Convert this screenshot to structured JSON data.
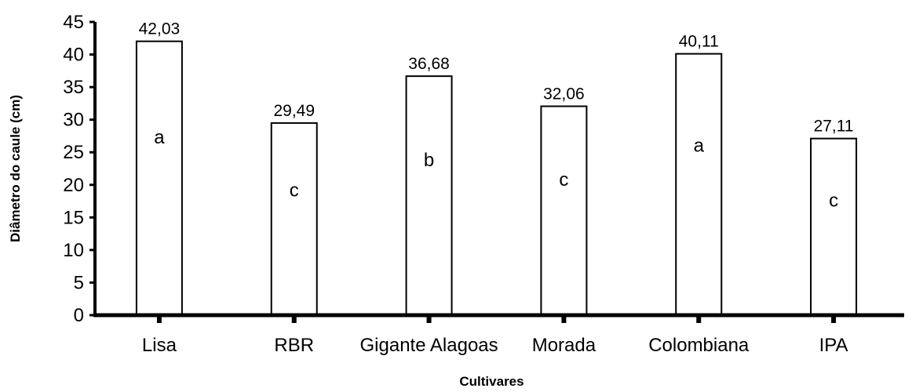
{
  "chart_data": {
    "type": "bar",
    "title": "",
    "xlabel": "Cultivares",
    "ylabel": "Diâmetro do caule (cm)",
    "ylim": [
      0,
      45
    ],
    "yticks": [
      0,
      5,
      10,
      15,
      20,
      25,
      30,
      35,
      40,
      45
    ],
    "categories": [
      "Lisa",
      "RBR",
      "Gigante Alagoas",
      "Morada",
      "Colombiana",
      "IPA"
    ],
    "values": [
      42.03,
      29.49,
      36.68,
      32.06,
      40.11,
      27.11
    ],
    "value_labels": [
      "42,03",
      "29,49",
      "36,68",
      "32,06",
      "40,11",
      "27,11"
    ],
    "letters": [
      "a",
      "c",
      "b",
      "c",
      "a",
      "c"
    ],
    "grid": false,
    "legend": "none",
    "colors": {
      "bar_fill": "#ffffff",
      "bar_stroke": "#000000",
      "axis": "#000000"
    }
  }
}
